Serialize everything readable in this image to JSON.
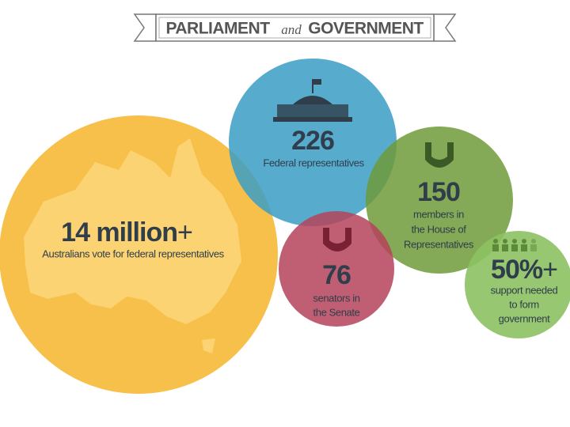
{
  "header": {
    "title_left": "PARLIAMENT",
    "title_mid": "and",
    "title_right": "GOVERNMENT"
  },
  "circles": [
    {
      "figure": "14 million",
      "suffix": "+",
      "lines": [
        "Australians vote for federal representatives"
      ]
    },
    {
      "figure": "226",
      "lines": [
        "Federal representatives"
      ]
    },
    {
      "figure": "150",
      "lines": [
        "members in",
        "the House of",
        "Representatives"
      ]
    },
    {
      "figure": "76",
      "lines": [
        "senators in",
        "the Senate"
      ]
    },
    {
      "figure": "50%",
      "suffix": "+",
      "lines": [
        "support needed",
        "to form",
        "government"
      ]
    }
  ]
}
